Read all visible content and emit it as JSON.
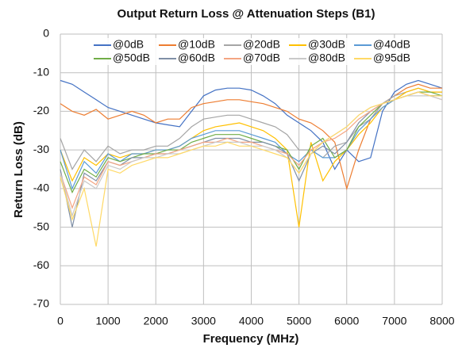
{
  "chart_data": {
    "type": "line",
    "title": "Output Return Loss @ Attenuation Steps (B1)",
    "x_label": "Frequency (MHz)",
    "y_label": "Return Loss (dB)",
    "xlim": [
      0,
      8000
    ],
    "xticks": [
      0,
      1000,
      2000,
      3000,
      4000,
      5000,
      6000,
      7000,
      8000
    ],
    "ylim": [
      -70,
      0
    ],
    "yticks": [
      0,
      -10,
      -20,
      -30,
      -40,
      -50,
      -60,
      -70
    ],
    "grid": true,
    "legend": "top",
    "x": [
      0,
      250,
      500,
      750,
      1000,
      1250,
      1500,
      1750,
      2000,
      2250,
      2500,
      2750,
      3000,
      3250,
      3500,
      3750,
      4000,
      4250,
      4500,
      4750,
      5000,
      5250,
      5500,
      5750,
      6000,
      6250,
      6500,
      6750,
      7000,
      7250,
      7500,
      7750,
      8000
    ],
    "series": [
      {
        "name": "@0dB",
        "color": "#4472c4",
        "values": [
          -12,
          -13,
          -15,
          -17,
          -19,
          -20,
          -21,
          -22,
          -23,
          -23.5,
          -24,
          -20,
          -16,
          -14.5,
          -14,
          -14,
          -14.5,
          -16,
          -18,
          -21,
          -23,
          -25,
          -28,
          -35,
          -30,
          -33,
          -32,
          -20,
          -15,
          -13,
          -12,
          -13,
          -14
        ]
      },
      {
        "name": "@10dB",
        "color": "#ed7d31",
        "values": [
          -18,
          -20,
          -21,
          -19.5,
          -22,
          -21,
          -20,
          -21,
          -23,
          -22,
          -22,
          -19,
          -18,
          -17.5,
          -17,
          -17,
          -17.5,
          -18,
          -19,
          -20,
          -22,
          -23,
          -25,
          -28,
          -40,
          -30,
          -22,
          -18,
          -16,
          -14,
          -13,
          -14,
          -14
        ]
      },
      {
        "name": "@20dB",
        "color": "#a5a5a5",
        "values": [
          -27,
          -35,
          -30,
          -33,
          -29,
          -31,
          -30,
          -30,
          -29,
          -29,
          -27,
          -24,
          -22,
          -21.5,
          -21,
          -21,
          -22,
          -23,
          -24,
          -26,
          -30,
          -30,
          -32,
          -29,
          -28,
          -24,
          -22,
          -18,
          -16,
          -15,
          -14,
          -15,
          -15
        ]
      },
      {
        "name": "@30dB",
        "color": "#ffc000",
        "values": [
          -30,
          -38,
          -32,
          -34,
          -31,
          -32,
          -31,
          -31,
          -30,
          -30,
          -29,
          -27,
          -25,
          -24,
          -23.5,
          -23,
          -24,
          -25,
          -27,
          -30,
          -50,
          -28,
          -38,
          -33,
          -30,
          -26,
          -23,
          -19,
          -17,
          -15,
          -14,
          -15,
          -15
        ]
      },
      {
        "name": "@40dB",
        "color": "#5b9bd5",
        "values": [
          -30,
          -40,
          -33,
          -36,
          -31,
          -33,
          -31,
          -31,
          -30,
          -30,
          -29,
          -27,
          -26,
          -25,
          -25,
          -25,
          -26,
          -27,
          -28,
          -31,
          -33,
          -30,
          -32,
          -32,
          -30,
          -25,
          -22,
          -19,
          -17,
          -16,
          -15,
          -16,
          -16
        ]
      },
      {
        "name": "@50dB",
        "color": "#70ad47",
        "values": [
          -33,
          -41,
          -35,
          -37,
          -32,
          -33,
          -32,
          -31,
          -31,
          -30,
          -30,
          -28,
          -27,
          -26,
          -26,
          -26,
          -27,
          -28,
          -29,
          -30,
          -35,
          -29,
          -27,
          -32,
          -30,
          -24,
          -21,
          -18,
          -17,
          -16,
          -15,
          -15,
          -16
        ]
      },
      {
        "name": "@60dB",
        "color": "#7f8fa6",
        "values": [
          -35,
          -50,
          -36,
          -38,
          -33,
          -34,
          -32,
          -32,
          -31,
          -31,
          -30,
          -29,
          -28,
          -27,
          -27,
          -27,
          -28,
          -28,
          -29,
          -31,
          -38,
          -31,
          -29,
          -31,
          -28,
          -23,
          -20,
          -18,
          -17,
          -16,
          -15,
          -16,
          -16
        ]
      },
      {
        "name": "@70dB",
        "color": "#f4a582",
        "values": [
          -36,
          -45,
          -37,
          -39,
          -33,
          -34,
          -33,
          -32,
          -31,
          -31,
          -30,
          -29,
          -28,
          -28,
          -27,
          -28,
          -28,
          -29,
          -30,
          -31,
          -34,
          -30,
          -28,
          -27,
          -25,
          -22,
          -20,
          -18,
          -17,
          -16,
          -15,
          -16,
          -17
        ]
      },
      {
        "name": "@80dB",
        "color": "#c9c9c9",
        "values": [
          -36,
          -47,
          -38,
          -40,
          -34,
          -35,
          -33,
          -32,
          -32,
          -31,
          -31,
          -30,
          -29,
          -28,
          -28,
          -28,
          -29,
          -29,
          -30,
          -32,
          -36,
          -31,
          -28,
          -26,
          -24,
          -21,
          -19,
          -18,
          -17,
          -16,
          -16,
          -16,
          -17
        ]
      },
      {
        "name": "@95dB",
        "color": "#ffd966",
        "values": [
          -37,
          -48,
          -40,
          -55,
          -35,
          -36,
          -34,
          -33,
          -32,
          -32,
          -31,
          -30,
          -29,
          -29,
          -28,
          -29,
          -29,
          -30,
          -31,
          -32,
          -36,
          -31,
          -28,
          -26,
          -24,
          -21,
          -19,
          -18,
          -17,
          -16,
          -15,
          -16,
          -16
        ]
      }
    ]
  }
}
